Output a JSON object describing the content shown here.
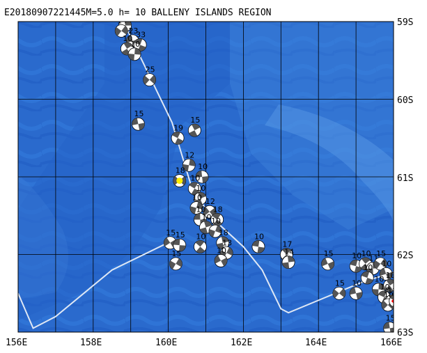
{
  "title": "E20180907221445M=5.0 h= 10 BALLENY ISLANDS REGION",
  "lat_labels": [
    "59S",
    "60S",
    "61S",
    "62S",
    "63S"
  ],
  "lon_labels": [
    "156E",
    "158E",
    "160E",
    "162E",
    "164E",
    "166E"
  ],
  "colors": {
    "ocean_deep": "#1f5fc6",
    "ocean_mid": "#2d72d4",
    "ocean_shallow": "#4d8fe0",
    "grid": "#000000",
    "plate_boundary": "#dfe8f5",
    "highlight": "#ffee00",
    "mainshock": "#ff0000"
  },
  "events": [
    {
      "lon": 158.85,
      "lat": 59.05,
      "depth": "15",
      "highlight": false
    },
    {
      "lon": 158.75,
      "lat": 59.12,
      "depth": "14",
      "highlight": false
    },
    {
      "lon": 159.05,
      "lat": 59.25,
      "depth": "23",
      "highlight": false
    },
    {
      "lon": 159.25,
      "lat": 59.3,
      "depth": "33",
      "highlight": false
    },
    {
      "lon": 158.9,
      "lat": 59.35,
      "depth": "10",
      "highlight": false
    },
    {
      "lon": 159.1,
      "lat": 59.42,
      "depth": "10",
      "highlight": false
    },
    {
      "lon": 159.5,
      "lat": 59.75,
      "depth": "25",
      "highlight": false
    },
    {
      "lon": 159.2,
      "lat": 60.32,
      "depth": "15",
      "highlight": false
    },
    {
      "lon": 160.25,
      "lat": 60.5,
      "depth": "19",
      "highlight": false
    },
    {
      "lon": 160.7,
      "lat": 60.4,
      "depth": "15",
      "highlight": false
    },
    {
      "lon": 160.55,
      "lat": 60.85,
      "depth": "12",
      "highlight": false
    },
    {
      "lon": 160.3,
      "lat": 61.05,
      "depth": "18",
      "highlight": true
    },
    {
      "lon": 160.9,
      "lat": 61.0,
      "depth": "10",
      "highlight": false
    },
    {
      "lon": 160.7,
      "lat": 61.15,
      "depth": "10",
      "highlight": false
    },
    {
      "lon": 160.85,
      "lat": 61.28,
      "depth": "10",
      "highlight": false
    },
    {
      "lon": 160.75,
      "lat": 61.4,
      "depth": "10",
      "highlight": false
    },
    {
      "lon": 161.1,
      "lat": 61.45,
      "depth": "12",
      "highlight": false
    },
    {
      "lon": 160.85,
      "lat": 61.55,
      "depth": "10",
      "highlight": false
    },
    {
      "lon": 161.3,
      "lat": 61.55,
      "depth": "18",
      "highlight": false
    },
    {
      "lon": 161.0,
      "lat": 61.65,
      "depth": "10",
      "highlight": false
    },
    {
      "lon": 161.25,
      "lat": 61.7,
      "depth": "10",
      "highlight": false
    },
    {
      "lon": 160.05,
      "lat": 61.85,
      "depth": "15",
      "highlight": false
    },
    {
      "lon": 160.3,
      "lat": 61.88,
      "depth": "15",
      "highlight": false
    },
    {
      "lon": 160.85,
      "lat": 61.9,
      "depth": "10",
      "highlight": false
    },
    {
      "lon": 161.45,
      "lat": 61.85,
      "depth": "18",
      "highlight": false
    },
    {
      "lon": 161.55,
      "lat": 61.98,
      "depth": "13",
      "highlight": false
    },
    {
      "lon": 161.4,
      "lat": 62.08,
      "depth": "10",
      "highlight": false
    },
    {
      "lon": 162.4,
      "lat": 61.9,
      "depth": "10",
      "highlight": false
    },
    {
      "lon": 163.15,
      "lat": 62.0,
      "depth": "17",
      "highlight": false
    },
    {
      "lon": 163.2,
      "lat": 62.1,
      "depth": "14",
      "highlight": false
    },
    {
      "lon": 160.2,
      "lat": 62.12,
      "depth": "15",
      "highlight": false
    },
    {
      "lon": 164.25,
      "lat": 62.12,
      "depth": "15",
      "highlight": false
    },
    {
      "lon": 165.0,
      "lat": 62.15,
      "depth": "10",
      "highlight": false
    },
    {
      "lon": 165.25,
      "lat": 62.12,
      "depth": "10",
      "highlight": false
    },
    {
      "lon": 165.45,
      "lat": 62.18,
      "depth": "11",
      "highlight": false
    },
    {
      "lon": 165.65,
      "lat": 62.12,
      "depth": "15",
      "highlight": false
    },
    {
      "lon": 165.8,
      "lat": 62.25,
      "depth": "10",
      "highlight": false
    },
    {
      "lon": 165.3,
      "lat": 62.3,
      "depth": "10",
      "highlight": false
    },
    {
      "lon": 165.9,
      "lat": 62.4,
      "depth": "10",
      "highlight": false
    },
    {
      "lon": 165.6,
      "lat": 62.45,
      "depth": "10",
      "highlight": false
    },
    {
      "lon": 164.55,
      "lat": 62.5,
      "depth": "15",
      "highlight": false
    },
    {
      "lon": 165.0,
      "lat": 62.5,
      "depth": "10",
      "highlight": false
    },
    {
      "lon": 165.75,
      "lat": 62.55,
      "depth": "10",
      "highlight": false
    },
    {
      "lon": 165.95,
      "lat": 62.6,
      "depth": "12",
      "highlight": false
    },
    {
      "lon": 166.1,
      "lat": 62.62,
      "depth": "10",
      "highlight": false
    },
    {
      "lon": 165.85,
      "lat": 62.65,
      "depth": "10",
      "highlight": false
    },
    {
      "lon": 165.9,
      "lat": 62.95,
      "depth": "15",
      "highlight": false
    },
    {
      "lon": 166.05,
      "lat": 62.6,
      "depth": "",
      "mainshock": true
    }
  ]
}
